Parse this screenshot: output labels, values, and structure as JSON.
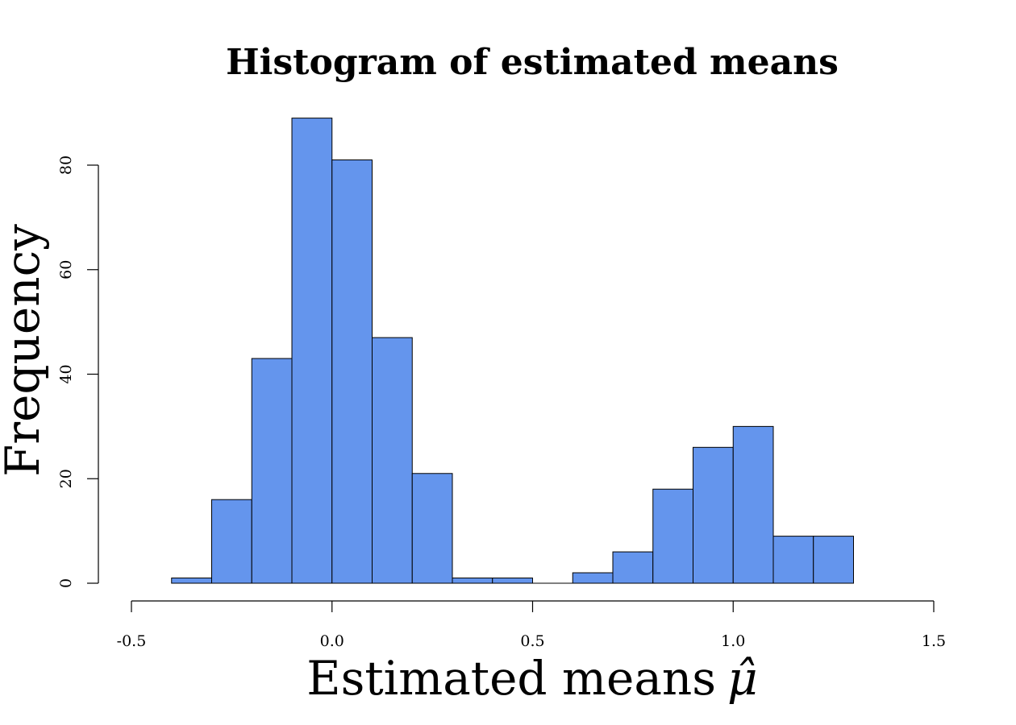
{
  "chart_data": {
    "type": "bar",
    "title": "Histogram of estimated means",
    "xlabel": "Estimated means",
    "xlabel_symbol": "μ̂",
    "ylabel": "Frequency",
    "bin_width": 0.1,
    "bins": [
      {
        "start": -0.4,
        "end": -0.3,
        "count": 1
      },
      {
        "start": -0.3,
        "end": -0.2,
        "count": 16
      },
      {
        "start": -0.2,
        "end": -0.1,
        "count": 43
      },
      {
        "start": -0.1,
        "end": 0.0,
        "count": 89
      },
      {
        "start": 0.0,
        "end": 0.1,
        "count": 81
      },
      {
        "start": 0.1,
        "end": 0.2,
        "count": 47
      },
      {
        "start": 0.2,
        "end": 0.3,
        "count": 21
      },
      {
        "start": 0.3,
        "end": 0.4,
        "count": 1
      },
      {
        "start": 0.4,
        "end": 0.5,
        "count": 1
      },
      {
        "start": 0.5,
        "end": 0.6,
        "count": 0
      },
      {
        "start": 0.6,
        "end": 0.7,
        "count": 2
      },
      {
        "start": 0.7,
        "end": 0.8,
        "count": 6
      },
      {
        "start": 0.8,
        "end": 0.9,
        "count": 18
      },
      {
        "start": 0.9,
        "end": 1.0,
        "count": 26
      },
      {
        "start": 1.0,
        "end": 1.1,
        "count": 30
      },
      {
        "start": 1.1,
        "end": 1.2,
        "count": 9
      },
      {
        "start": 1.2,
        "end": 1.3,
        "count": 9
      }
    ],
    "xlim": [
      -0.5,
      1.5
    ],
    "ylim": [
      0,
      80
    ],
    "x_ticks": [
      -0.5,
      0.0,
      0.5,
      1.0,
      1.5
    ],
    "x_tick_labels": [
      "-0.5",
      "0.0",
      "0.5",
      "1.0",
      "1.5"
    ],
    "y_ticks": [
      0,
      20,
      40,
      60,
      80
    ],
    "y_tick_labels": [
      "0",
      "20",
      "40",
      "60",
      "80"
    ],
    "bar_color": "#6495ED",
    "grid": false
  }
}
